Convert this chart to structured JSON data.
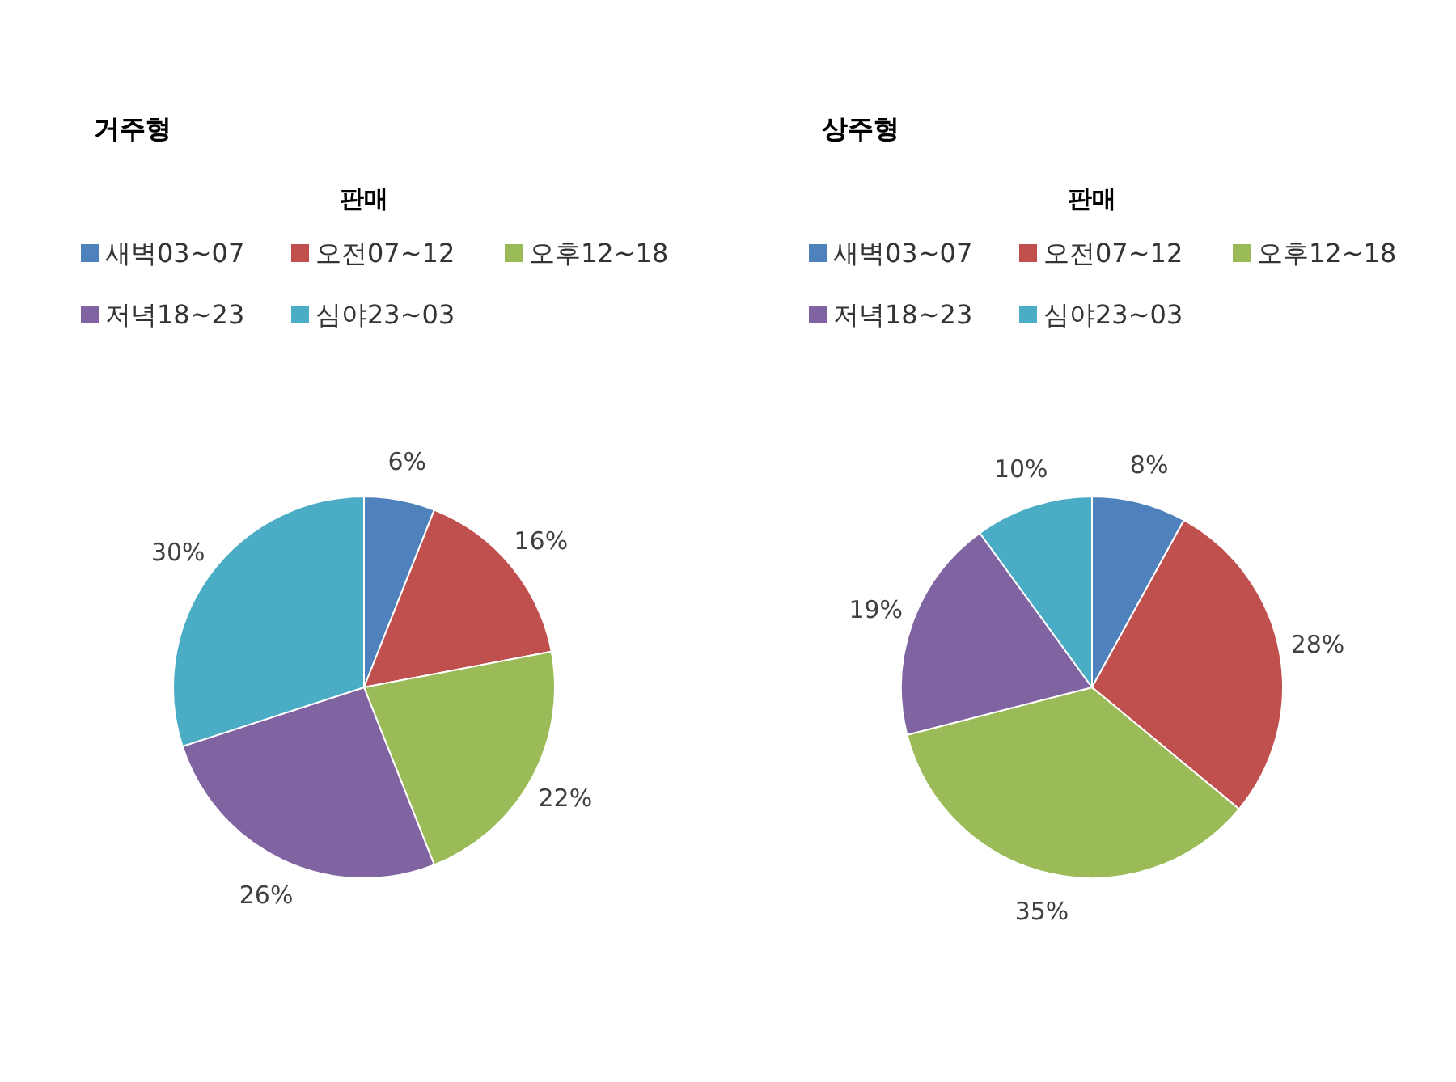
{
  "chart_data": [
    {
      "type": "pie",
      "title": "거주형",
      "legend_title": "판매",
      "legend": "top",
      "categories": [
        "새벽03~07",
        "오전07~12",
        "오후12~18",
        "저녁18~23",
        "심야23~03"
      ],
      "values": [
        6,
        16,
        22,
        26,
        30
      ],
      "value_labels": [
        "6%",
        "16%",
        "22%",
        "26%",
        "30%"
      ],
      "colors": [
        "#4f81bd",
        "#c0504d",
        "#9bbb59",
        "#8064a2",
        "#4bacc6"
      ]
    },
    {
      "type": "pie",
      "title": "상주형",
      "legend_title": "판매",
      "legend": "top",
      "categories": [
        "새벽03~07",
        "오전07~12",
        "오후12~18",
        "저녁18~23",
        "심야23~03"
      ],
      "values": [
        8,
        28,
        35,
        19,
        10
      ],
      "value_labels": [
        "8%",
        "28%",
        "35%",
        "19%",
        "10%"
      ],
      "colors": [
        "#4f81bd",
        "#c0504d",
        "#9bbb59",
        "#8064a2",
        "#4bacc6"
      ]
    }
  ]
}
